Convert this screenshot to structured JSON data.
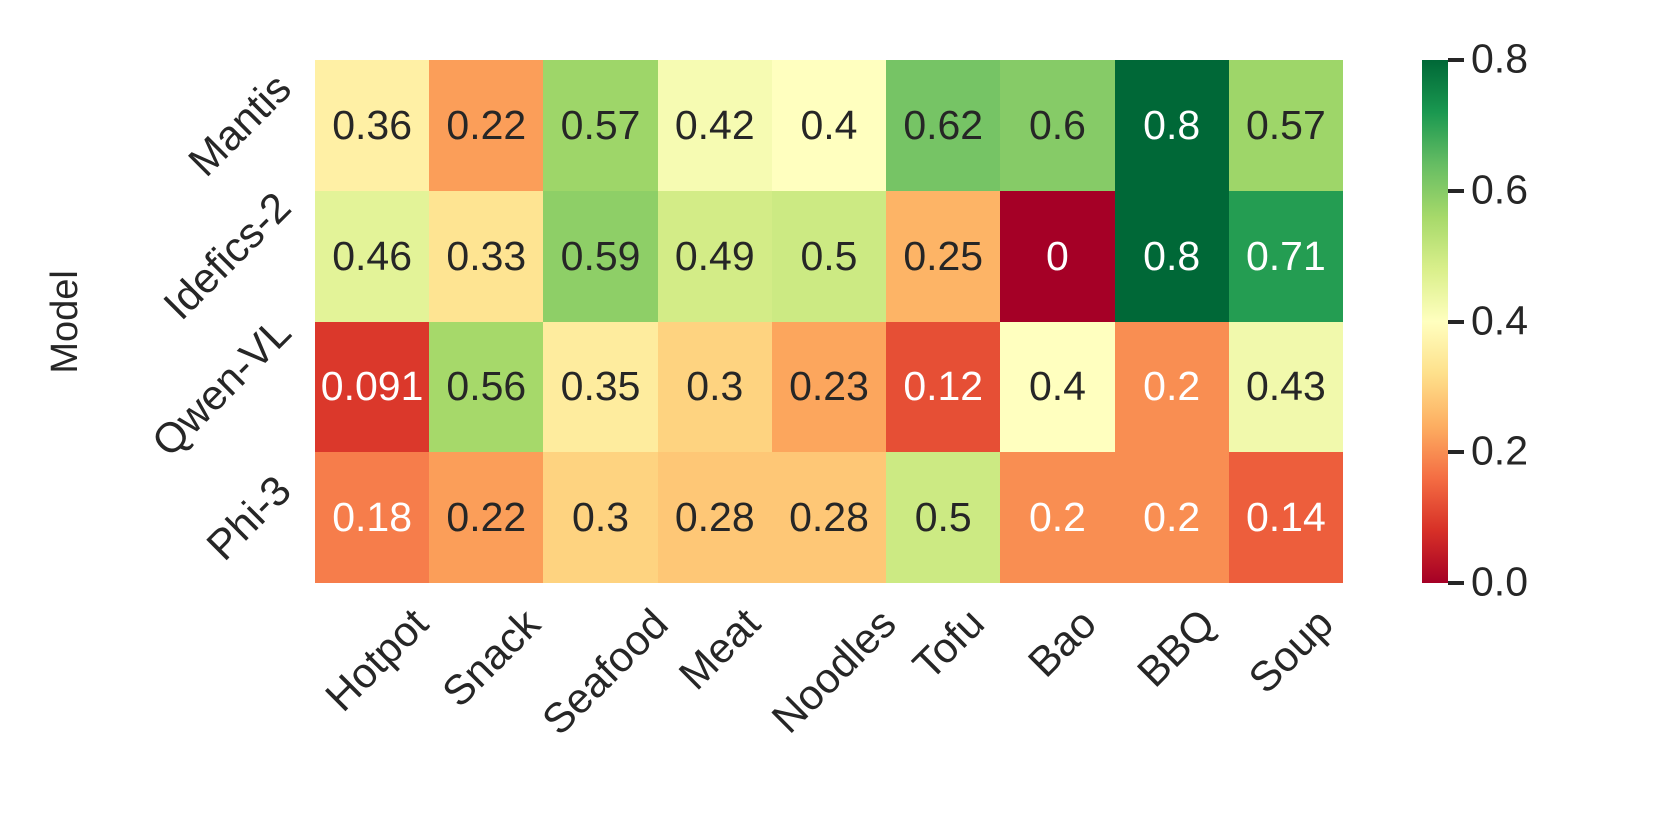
{
  "figure": {
    "background": "#ffffff",
    "text_color": "#262626"
  },
  "chart_data": {
    "type": "heatmap",
    "title": "",
    "xlabel": "",
    "ylabel": "Model",
    "rows": [
      "Mantis",
      "Idefics-2",
      "Qwen-VL",
      "Phi-3"
    ],
    "columns": [
      "Hotpot",
      "Snack",
      "Seafood",
      "Meat",
      "Noodles",
      "Tofu",
      "Bao",
      "BBQ",
      "Soup"
    ],
    "values": [
      [
        0.36,
        0.22,
        0.57,
        0.42,
        0.4,
        0.62,
        0.6,
        0.8,
        0.57
      ],
      [
        0.46,
        0.33,
        0.59,
        0.49,
        0.5,
        0.25,
        0,
        0.8,
        0.71
      ],
      [
        0.091,
        0.56,
        0.35,
        0.3,
        0.23,
        0.12,
        0.4,
        0.2,
        0.43
      ],
      [
        0.18,
        0.22,
        0.3,
        0.28,
        0.28,
        0.5,
        0.2,
        0.2,
        0.14
      ]
    ],
    "cell_labels": [
      [
        "0.36",
        "0.22",
        "0.57",
        "0.42",
        "0.4",
        "0.62",
        "0.6",
        "0.8",
        "0.57"
      ],
      [
        "0.46",
        "0.33",
        "0.59",
        "0.49",
        "0.5",
        "0.25",
        "0",
        "0.8",
        "0.71"
      ],
      [
        "0.091",
        "0.56",
        "0.35",
        "0.3",
        "0.23",
        "0.12",
        "0.4",
        "0.2",
        "0.43"
      ],
      [
        "0.18",
        "0.22",
        "0.3",
        "0.28",
        "0.28",
        "0.5",
        "0.2",
        "0.2",
        "0.14"
      ]
    ],
    "vmin": 0,
    "vmax": 0.8,
    "colormap": "RdYlGn",
    "colormap_stops": [
      "#a50026",
      "#d73027",
      "#f46d43",
      "#fdae61",
      "#fee08b",
      "#ffffbf",
      "#d9ef8b",
      "#a6d96a",
      "#66bd63",
      "#1a9850",
      "#006837"
    ],
    "colorbar_ticks": [
      {
        "value": 0.8,
        "label": "0.8"
      },
      {
        "value": 0.6,
        "label": "0.6"
      },
      {
        "value": 0.4,
        "label": "0.4"
      },
      {
        "value": 0.2,
        "label": "0.2"
      },
      {
        "value": 0.0,
        "label": "0.0"
      }
    ],
    "annotation_colors": {
      "dark_text": "#262626",
      "light_text": "#ffffff"
    },
    "legend_position": "right",
    "grid": false,
    "tick_rotation_deg": 45
  }
}
